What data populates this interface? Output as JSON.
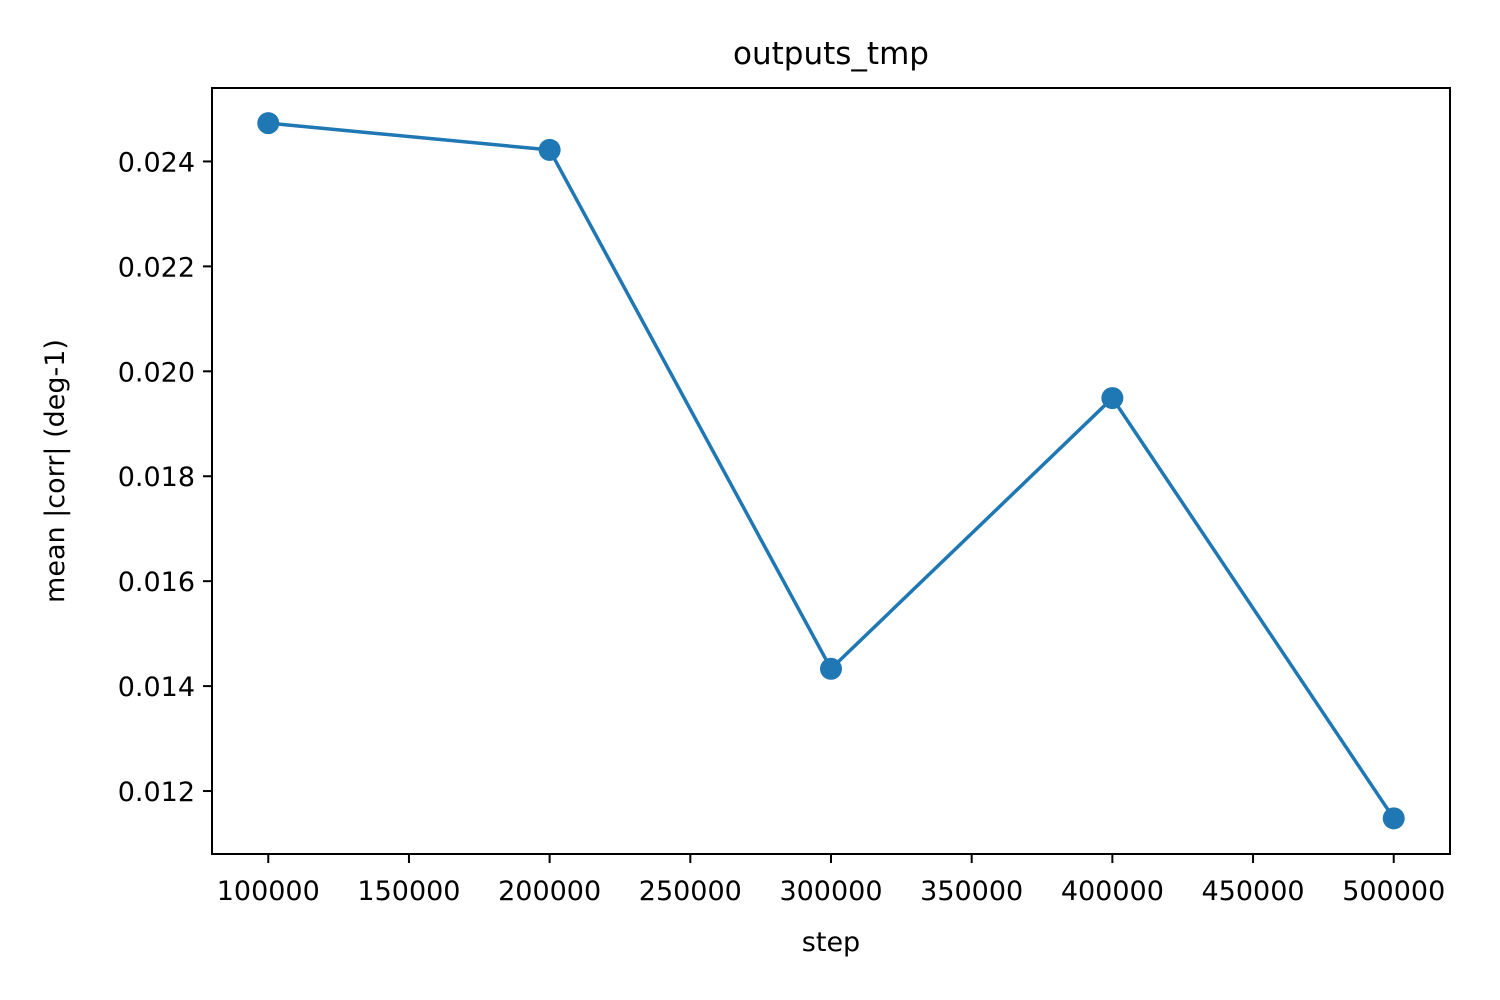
{
  "chart_data": {
    "type": "line",
    "title": "outputs_tmp",
    "xlabel": "step",
    "ylabel": "mean |corr| (deg-1)",
    "x": [
      100000,
      200000,
      300000,
      400000,
      500000
    ],
    "series": [
      {
        "values": [
          0.02473,
          0.02422,
          0.01433,
          0.01949,
          0.01148
        ],
        "color": "#1f77b4",
        "marker": "circle"
      }
    ],
    "xlim": [
      80000,
      520000
    ],
    "ylim": [
      0.0108,
      0.0254
    ],
    "xticks": [
      100000,
      150000,
      200000,
      250000,
      300000,
      350000,
      400000,
      450000,
      500000
    ],
    "xtick_labels": [
      "100000",
      "150000",
      "200000",
      "250000",
      "300000",
      "350000",
      "400000",
      "450000",
      "500000"
    ],
    "yticks": [
      0.012,
      0.014,
      0.016,
      0.018,
      0.02,
      0.022,
      0.024
    ],
    "ytick_labels": [
      "0.012",
      "0.014",
      "0.016",
      "0.018",
      "0.020",
      "0.022",
      "0.024"
    ],
    "grid": false,
    "legend": false
  }
}
